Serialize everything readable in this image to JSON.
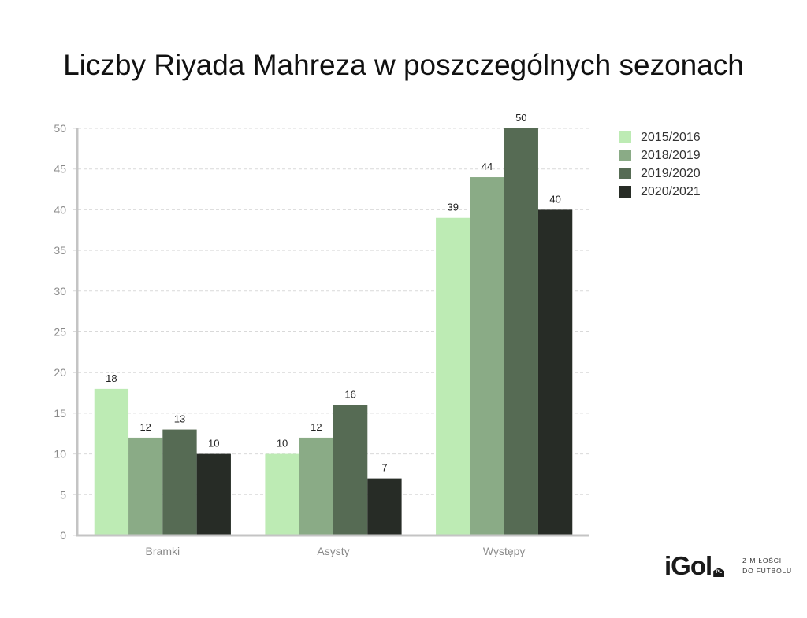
{
  "title": "Liczby Riyada Mahreza w poszczególnych sezonach",
  "legend": [
    {
      "label": "2015/2016",
      "color": "#bdebb4"
    },
    {
      "label": "2018/2019",
      "color": "#8aab86"
    },
    {
      "label": "2019/2020",
      "color": "#566b54"
    },
    {
      "label": "2020/2021",
      "color": "#272c26"
    }
  ],
  "logo": {
    "brand": "iGol",
    "badge": "PL",
    "tagline_line1": "Z MIŁOŚCI",
    "tagline_line2": "DO FUTBOLU"
  },
  "chart_data": {
    "type": "bar",
    "title": "Liczby Riyada Mahreza w poszczególnych sezonach",
    "xlabel": "",
    "ylabel": "",
    "categories": [
      "Bramki",
      "Asysty",
      "Występy"
    ],
    "series": [
      {
        "name": "2015/2016",
        "color": "#bdebb4",
        "values": [
          18,
          10,
          39
        ]
      },
      {
        "name": "2018/2019",
        "color": "#8aab86",
        "values": [
          12,
          12,
          44
        ]
      },
      {
        "name": "2019/2020",
        "color": "#566b54",
        "values": [
          13,
          16,
          50
        ]
      },
      {
        "name": "2020/2021",
        "color": "#272c26",
        "values": [
          10,
          7,
          40
        ]
      }
    ],
    "ylim": [
      0,
      50
    ],
    "yticks": [
      0,
      5,
      10,
      15,
      20,
      25,
      30,
      35,
      40,
      45,
      50
    ],
    "grid": true,
    "grid_style": "dashed",
    "data_labels": true,
    "legend_position": "right"
  }
}
